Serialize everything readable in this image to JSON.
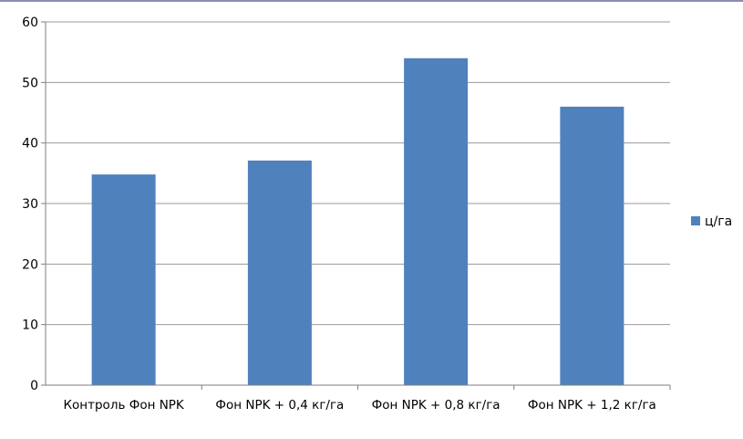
{
  "chart_data": {
    "type": "bar",
    "categories": [
      "Контроль Фон NPK",
      "Фон NPK + 0,4 кг/га",
      "Фон NPK + 0,8 кг/га",
      "Фон NPK + 1,2 кг/га"
    ],
    "series": [
      {
        "name": "ц/га",
        "values": [
          34.8,
          37.1,
          54.0,
          46.0
        ]
      }
    ],
    "ylim": [
      0,
      60
    ],
    "yticks": [
      0,
      10,
      20,
      30,
      40,
      50,
      60
    ],
    "grid": true,
    "legend": "right",
    "colors": {
      "bar": "#4f81bd",
      "grid": "#9a9a9a",
      "axis": "#7f7f7f"
    }
  }
}
